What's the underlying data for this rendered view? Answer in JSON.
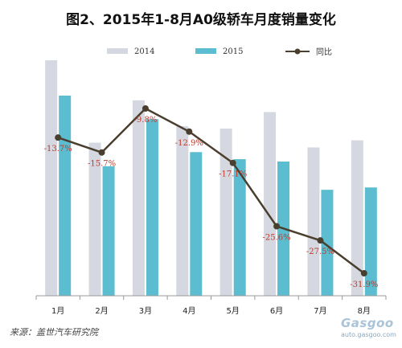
{
  "title": "图2、2015年1-8月A0级轿车月度销量变化",
  "source": "来源：盖世汽车研究院",
  "watermark": {
    "brand": "Gasgoo",
    "url": "auto.gasgoo.com"
  },
  "colors": {
    "s2014": "#d5d8e0",
    "s2015": "#5bbdcf",
    "line": "#4a3f2e",
    "label": "#c0392b"
  },
  "chart_data": {
    "type": "bar",
    "categories": [
      "1月",
      "2月",
      "3月",
      "4月",
      "5月",
      "6月",
      "7月",
      "8月"
    ],
    "series": [
      {
        "name": "2014",
        "values": [
          100,
          65,
          83,
          72,
          71,
          78,
          63,
          66
        ]
      },
      {
        "name": "2015",
        "values": [
          85,
          55,
          75,
          61,
          58,
          57,
          45,
          46
        ]
      }
    ],
    "line": {
      "name": "同比",
      "values": [
        -13.7,
        -15.7,
        -9.8,
        -12.9,
        -17.1,
        -25.6,
        -27.5,
        -31.9
      ],
      "labels": [
        "-13.7%",
        "-15.7%",
        "-9.8%",
        "-12.9%",
        "-17.1%",
        "-25.6%",
        "-27.5%",
        "-31.9%"
      ]
    },
    "bar_ylim": [
      0,
      100
    ],
    "line_ylim": [
      -34,
      -6
    ],
    "legend_position": "top"
  }
}
